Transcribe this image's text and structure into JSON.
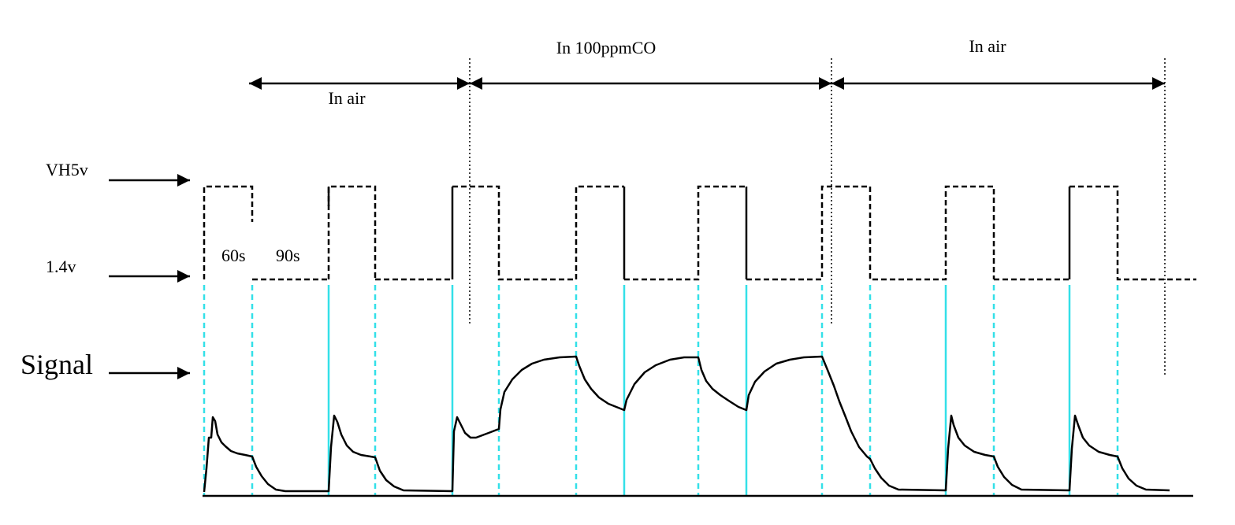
{
  "labels": {
    "vh_high": "VH5v",
    "vh_low": "1.4v",
    "signal": "Signal",
    "high_duration": "60s",
    "low_duration": "90s"
  },
  "phases": [
    {
      "label": "In air"
    },
    {
      "label": "In 100ppmCO"
    },
    {
      "label": "In air"
    }
  ],
  "colors": {
    "trace": "#000000",
    "guide": "#33e0e8",
    "divider": "#000000"
  }
}
